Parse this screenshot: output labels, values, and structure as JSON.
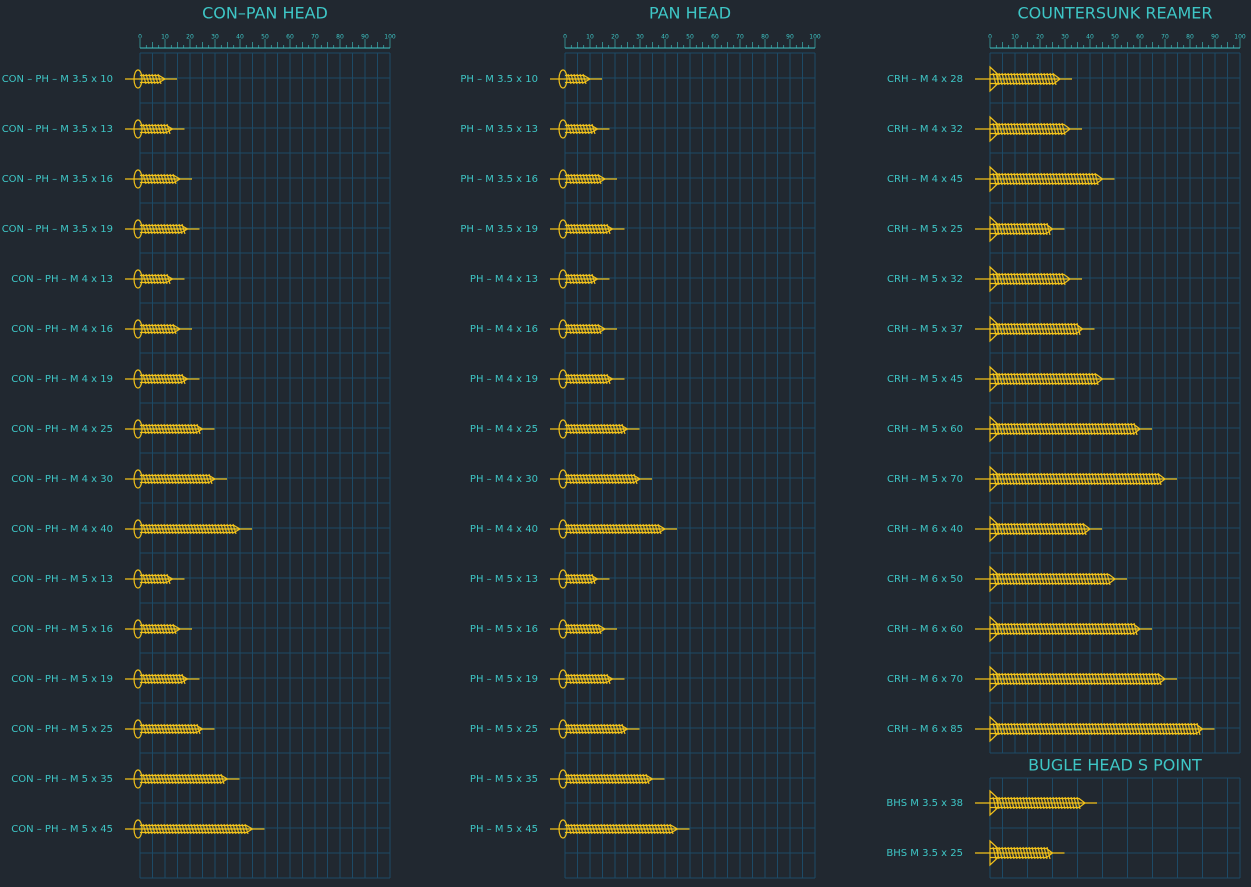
{
  "panels": [
    {
      "title": "CON–PAN HEAD",
      "ticks": [
        0,
        10,
        20,
        30,
        40,
        50,
        60,
        70,
        80,
        90,
        100
      ],
      "items": [
        {
          "label": "CON – PH – M 3.5 x 10",
          "length": 10
        },
        {
          "label": "CON – PH – M 3.5 x 13",
          "length": 13
        },
        {
          "label": "CON – PH – M 3.5 x 16",
          "length": 16
        },
        {
          "label": "CON – PH – M 3.5 x 19",
          "length": 19
        },
        {
          "label": "CON – PH – M 4 x 13",
          "length": 13
        },
        {
          "label": "CON – PH – M 4 x 16",
          "length": 16
        },
        {
          "label": "CON – PH – M 4 x 19",
          "length": 19
        },
        {
          "label": "CON – PH – M 4 x 25",
          "length": 25
        },
        {
          "label": "CON – PH – M 4 x 30",
          "length": 30
        },
        {
          "label": "CON – PH – M 4 x 40",
          "length": 40
        },
        {
          "label": "CON – PH – M 5 x 13",
          "length": 13
        },
        {
          "label": "CON – PH – M 5 x 16",
          "length": 16
        },
        {
          "label": "CON – PH – M 5 x 19",
          "length": 19
        },
        {
          "label": "CON – PH – M 5 x 25",
          "length": 25
        },
        {
          "label": "CON – PH – M 5 x 35",
          "length": 35
        },
        {
          "label": "CON – PH – M 5 x 45",
          "length": 45
        }
      ]
    },
    {
      "title": "PAN HEAD",
      "ticks": [
        0,
        10,
        20,
        30,
        40,
        50,
        60,
        70,
        80,
        90,
        100
      ],
      "items": [
        {
          "label": "PH – M 3.5 x 10",
          "length": 10
        },
        {
          "label": "PH – M 3.5 x 13",
          "length": 13
        },
        {
          "label": "PH – M 3.5 x 16",
          "length": 16
        },
        {
          "label": "PH – M 3.5 x 19",
          "length": 19
        },
        {
          "label": "PH – M 4 x 13",
          "length": 13
        },
        {
          "label": "PH – M 4 x 16",
          "length": 16
        },
        {
          "label": "PH – M 4 x 19",
          "length": 19
        },
        {
          "label": "PH – M 4 x 25",
          "length": 25
        },
        {
          "label": "PH – M 4 x 30",
          "length": 30
        },
        {
          "label": "PH – M 4 x 40",
          "length": 40
        },
        {
          "label": "PH – M 5 x 13",
          "length": 13
        },
        {
          "label": "PH – M 5 x 16",
          "length": 16
        },
        {
          "label": "PH – M 5 x 19",
          "length": 19
        },
        {
          "label": "PH – M 5 x 25",
          "length": 25
        },
        {
          "label": "PH – M 5 x 35",
          "length": 35
        },
        {
          "label": "PH – M 5 x 45",
          "length": 45
        }
      ]
    },
    {
      "title": "COUNTERSUNK REAMER",
      "ticks": [
        0,
        10,
        20,
        30,
        40,
        50,
        60,
        70,
        80,
        90,
        100
      ],
      "items": [
        {
          "label": "CRH – M 4 x 28",
          "length": 28
        },
        {
          "label": "CRH – M 4 x 32",
          "length": 32
        },
        {
          "label": "CRH – M 4 x 45",
          "length": 45
        },
        {
          "label": "CRH – M 5 x 25",
          "length": 25
        },
        {
          "label": "CRH – M 5 x 32",
          "length": 32
        },
        {
          "label": "CRH – M 5 x 37",
          "length": 37
        },
        {
          "label": "CRH – M 5 x 45",
          "length": 45
        },
        {
          "label": "CRH – M 5 x 60",
          "length": 60
        },
        {
          "label": "CRH – M 5 x 70",
          "length": 70
        },
        {
          "label": "CRH – M 6 x 40",
          "length": 40
        },
        {
          "label": "CRH – M 6 x 50",
          "length": 50
        },
        {
          "label": "CRH – M 6 x 60",
          "length": 60
        },
        {
          "label": "CRH – M 6 x 70",
          "length": 70
        },
        {
          "label": "CRH – M 6 x 85",
          "length": 85
        }
      ]
    },
    {
      "title": "BUGLE HEAD S POINT",
      "items": [
        {
          "label": "BHS M 3.5 x 38",
          "length": 38
        },
        {
          "label": "BHS M 3.5 x 25",
          "length": 25
        }
      ]
    }
  ]
}
